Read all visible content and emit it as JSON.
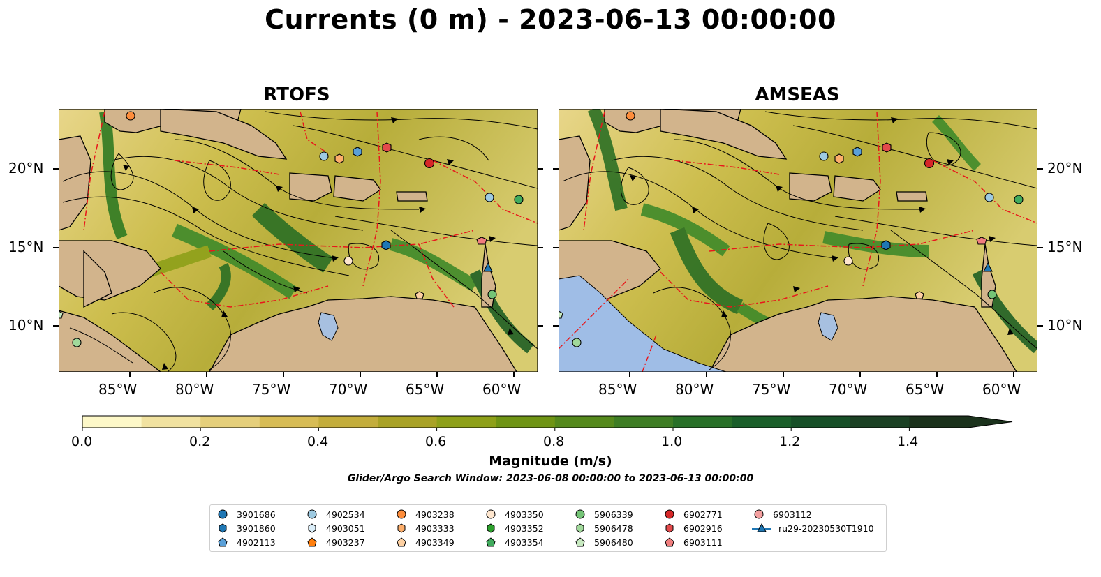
{
  "title": "Currents (0 m) - 2023-06-13 00:00:00",
  "panels": [
    {
      "title": "RTOFS"
    },
    {
      "title": "AMSEAS"
    }
  ],
  "axes": {
    "lon_ticks": [
      "85°W",
      "80°W",
      "75°W",
      "70°W",
      "65°W",
      "60°W"
    ],
    "lat_ticks": [
      "20°N",
      "15°N",
      "10°N"
    ]
  },
  "colorbar": {
    "title": "Magnitude (m/s)",
    "ticks": [
      "0.0",
      "0.2",
      "0.4",
      "0.6",
      "0.8",
      "1.0",
      "1.2",
      "1.4"
    ],
    "range": [
      0.0,
      1.5
    ],
    "extend": "max",
    "colors": [
      "#fdf8c8",
      "#f1e2a0",
      "#e5cf7b",
      "#d7bc55",
      "#c3ad3c",
      "#a9a226",
      "#8ea019",
      "#6f9414",
      "#55891c",
      "#3e7d24",
      "#287028",
      "#1a5f2a",
      "#175028",
      "#1b4124",
      "#1b321c"
    ]
  },
  "subtitle": "Glider/Argo Search Window: 2023-06-08 00:00:00 to 2023-06-13 00:00:00",
  "legend": [
    {
      "label": "3901686",
      "marker": "circle",
      "color": "#1f77b4"
    },
    {
      "label": "3901860",
      "marker": "hexagon",
      "color": "#1f77b4"
    },
    {
      "label": "4902113",
      "marker": "pentagon",
      "color": "#5aa0d8"
    },
    {
      "label": "4902534",
      "marker": "circle",
      "color": "#9ecae1"
    },
    {
      "label": "4903051",
      "marker": "hexagon",
      "color": "#dbeef9"
    },
    {
      "label": "4903237",
      "marker": "pentagon",
      "color": "#ff7f0e"
    },
    {
      "label": "4903238",
      "marker": "circle",
      "color": "#fd8d3c"
    },
    {
      "label": "4903333",
      "marker": "hexagon",
      "color": "#fdae6b"
    },
    {
      "label": "4903349",
      "marker": "pentagon",
      "color": "#fdd0a2"
    },
    {
      "label": "4903350",
      "marker": "circle",
      "color": "#fee6ce"
    },
    {
      "label": "4903352",
      "marker": "hexagon",
      "color": "#2ca02c"
    },
    {
      "label": "4903354",
      "marker": "pentagon",
      "color": "#41ab5d"
    },
    {
      "label": "5906339",
      "marker": "circle",
      "color": "#74c476"
    },
    {
      "label": "5906478",
      "marker": "hexagon",
      "color": "#a1d99b"
    },
    {
      "label": "5906480",
      "marker": "pentagon",
      "color": "#c7e9c0"
    },
    {
      "label": "6902771",
      "marker": "circle",
      "color": "#d62728"
    },
    {
      "label": "6902916",
      "marker": "hexagon",
      "color": "#e34a4b"
    },
    {
      "label": "6903111",
      "marker": "pentagon",
      "color": "#f07e7e"
    },
    {
      "label": "6903112",
      "marker": "circle",
      "color": "#f4a0a0"
    },
    {
      "label": "ru29-20230530T1910",
      "marker": "triangle-line",
      "color": "#1f77b4"
    }
  ],
  "map_colors": {
    "land": "#d2b48c",
    "lake": "#a7c0e0",
    "ocean_masked": "#9fbde6",
    "eez_line": "#e8171b",
    "streamline": "#000000"
  }
}
